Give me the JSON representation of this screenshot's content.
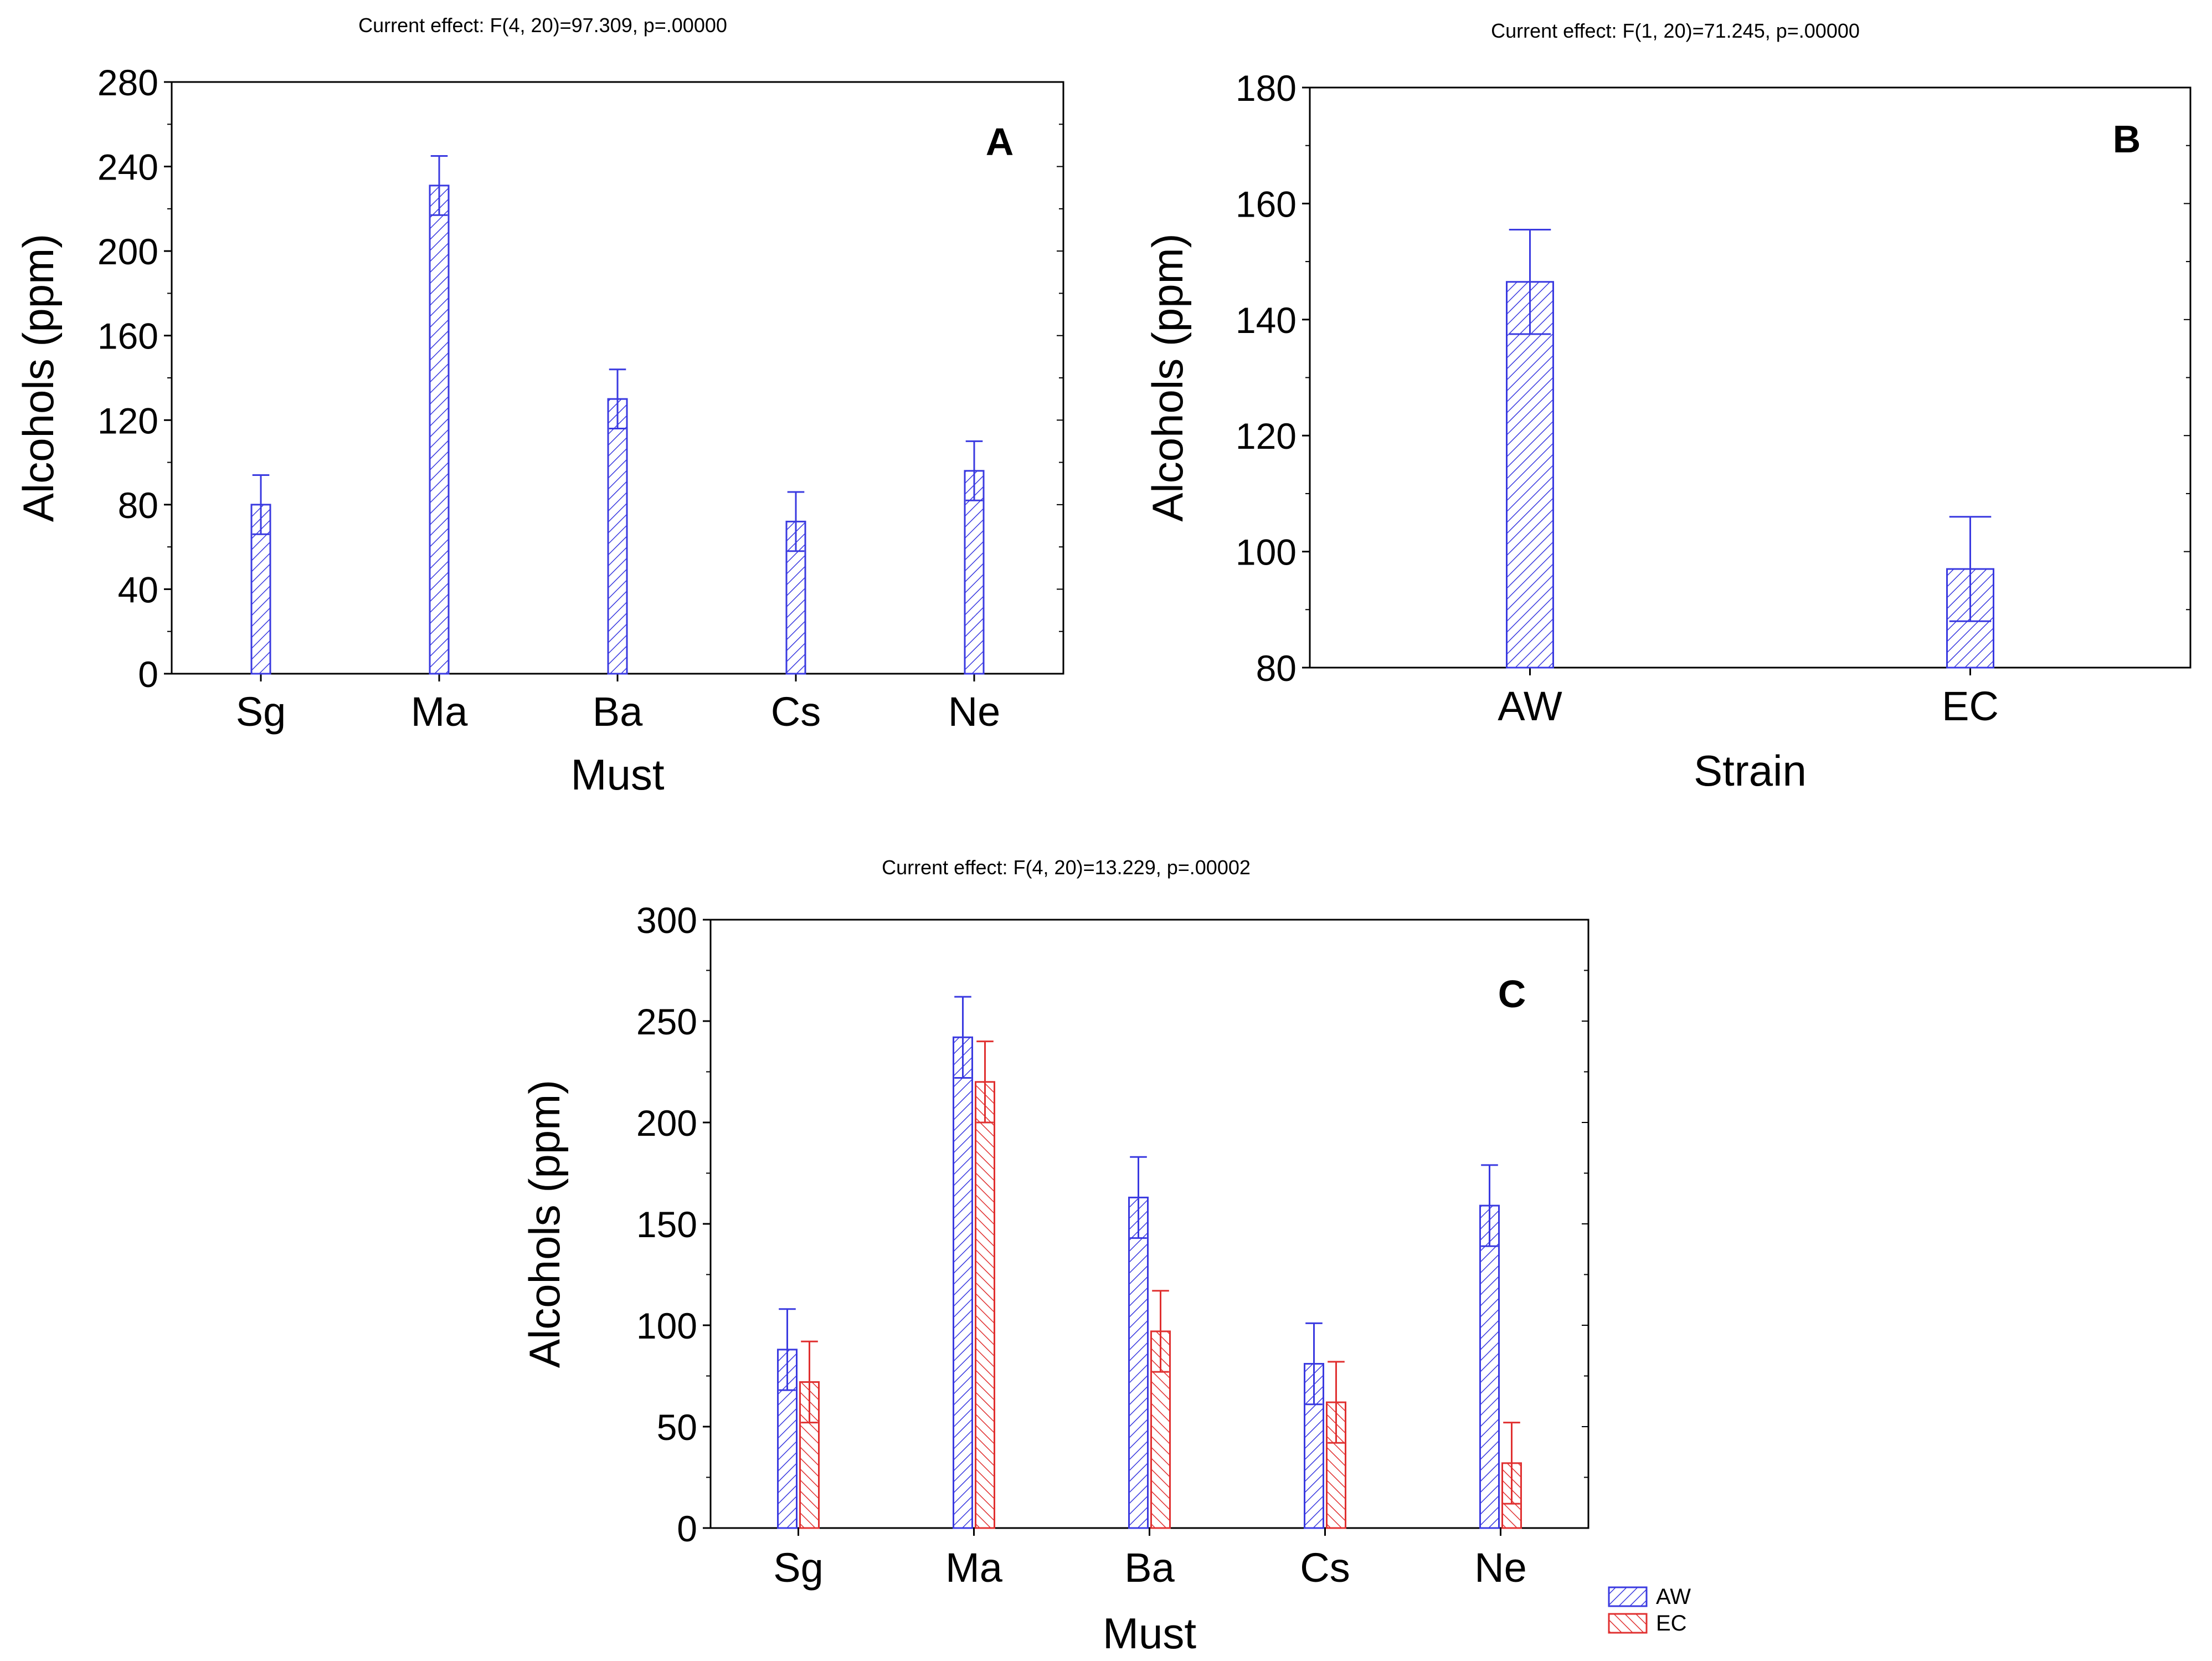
{
  "chart_data": [
    {
      "type": "bar",
      "panel": "A",
      "effect_label": "Current effect: F(4, 20)=97.309, p=.00000",
      "xlabel": "Must",
      "ylabel": "Alcohols (ppm)",
      "categories": [
        "Sg",
        "Ma",
        "Ba",
        "Cs",
        "Ne"
      ],
      "ylim": [
        0,
        280
      ],
      "yticks": [
        0,
        40,
        80,
        120,
        160,
        200,
        240,
        280
      ],
      "yticks_labels": [
        "0",
        "40",
        "80",
        "120",
        "160",
        "200",
        "240",
        "280"
      ],
      "series": [
        {
          "color": "#3a3ae0",
          "values": [
            80,
            231,
            130,
            72,
            96
          ],
          "error": [
            14,
            14,
            14,
            14,
            14
          ]
        }
      ]
    },
    {
      "type": "bar",
      "panel": "B",
      "effect_label": "Current effect: F(1, 20)=71.245, p=.00000",
      "xlabel": "Strain",
      "ylabel": "Alcohols (ppm)",
      "categories": [
        "AW",
        "EC"
      ],
      "ylim": [
        80,
        180
      ],
      "yticks": [
        80,
        100,
        120,
        140,
        160,
        180
      ],
      "yticks_labels": [
        "80",
        "100",
        "120",
        "140",
        "160",
        "180"
      ],
      "series": [
        {
          "color": "#3a3ae0",
          "values": [
            146.5,
            97
          ],
          "error": [
            9,
            9
          ]
        }
      ]
    },
    {
      "type": "bar",
      "panel": "C",
      "effect_label": "Current effect: F(4, 20)=13.229, p=.00002",
      "xlabel": "Must",
      "ylabel": "Alcohols (ppm)",
      "categories": [
        "Sg",
        "Ma",
        "Ba",
        "Cs",
        "Ne"
      ],
      "ylim": [
        0,
        300
      ],
      "yticks": [
        0,
        50,
        100,
        150,
        200,
        250,
        300
      ],
      "yticks_labels": [
        "0",
        "50",
        "100",
        "150",
        "200",
        "250",
        "300"
      ],
      "legend_position": "bottom-right, outside plot",
      "series": [
        {
          "name": "AW",
          "color": "#3a3ae0",
          "values": [
            88,
            242,
            163,
            81,
            159
          ],
          "error": [
            20,
            20,
            20,
            20,
            20
          ]
        },
        {
          "name": "EC",
          "color": "#e03030",
          "values": [
            72,
            220,
            97,
            62,
            32
          ],
          "error": [
            20,
            20,
            20,
            20,
            20
          ]
        }
      ]
    }
  ]
}
